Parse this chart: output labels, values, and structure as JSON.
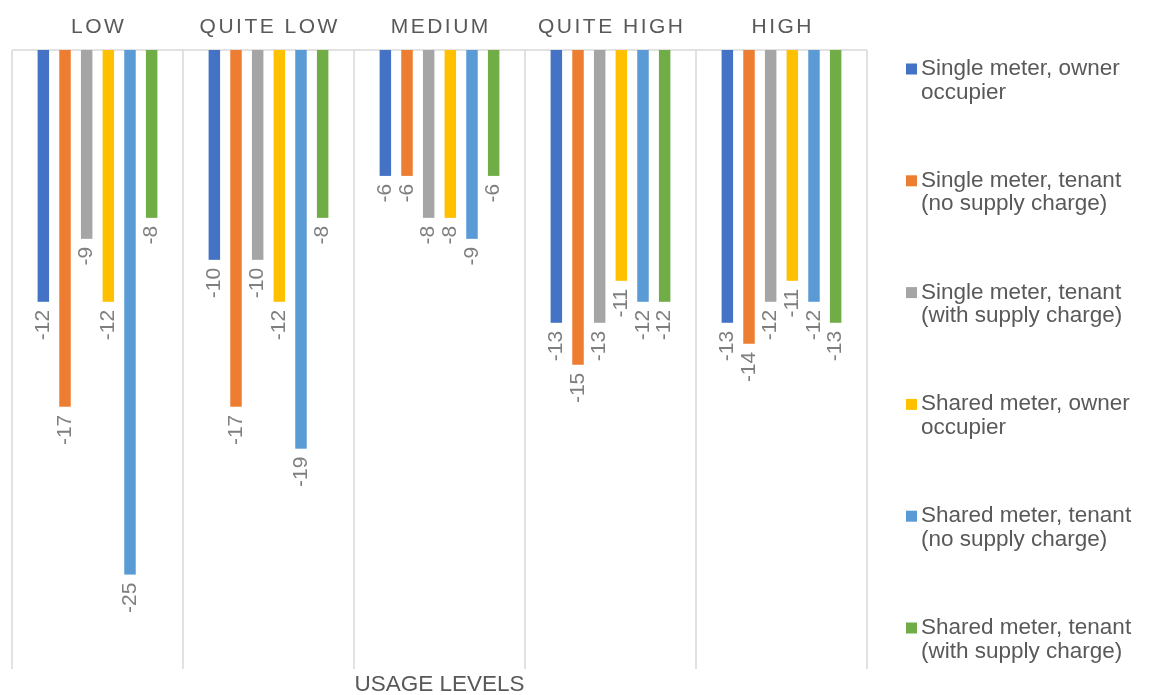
{
  "chart_data": {
    "type": "bar",
    "xlabel": "USAGE LEVELS",
    "categories": [
      "LOW",
      "QUITE LOW",
      "MEDIUM",
      "QUITE HIGH",
      "HIGH"
    ],
    "series": [
      {
        "name": "Single meter, owner occupier",
        "color": "#4472c4",
        "values": [
          -12,
          -10,
          -6,
          -13,
          -13
        ]
      },
      {
        "name": "Single meter, tenant (no supply charge)",
        "color": "#ed7d31",
        "values": [
          -17,
          -17,
          -6,
          -15,
          -14
        ]
      },
      {
        "name": "Single meter, tenant (with supply charge)",
        "color": "#a5a5a5",
        "values": [
          -9,
          -10,
          -8,
          -13,
          -12
        ]
      },
      {
        "name": "Shared meter, owner occupier",
        "color": "#ffc000",
        "values": [
          -12,
          -12,
          -8,
          -11,
          -11
        ]
      },
      {
        "name": "Shared meter, tenant (no supply charge)",
        "color": "#5b9bd5",
        "values": [
          -25,
          -19,
          -9,
          -12,
          -12
        ]
      },
      {
        "name": "Shared meter, tenant (with supply charge)",
        "color": "#70ad47",
        "values": [
          -8,
          -8,
          -6,
          -12,
          -13
        ]
      }
    ],
    "ylim": [
      -29.5,
      0
    ],
    "data_labels": true,
    "grid": "x",
    "legend": "right"
  }
}
